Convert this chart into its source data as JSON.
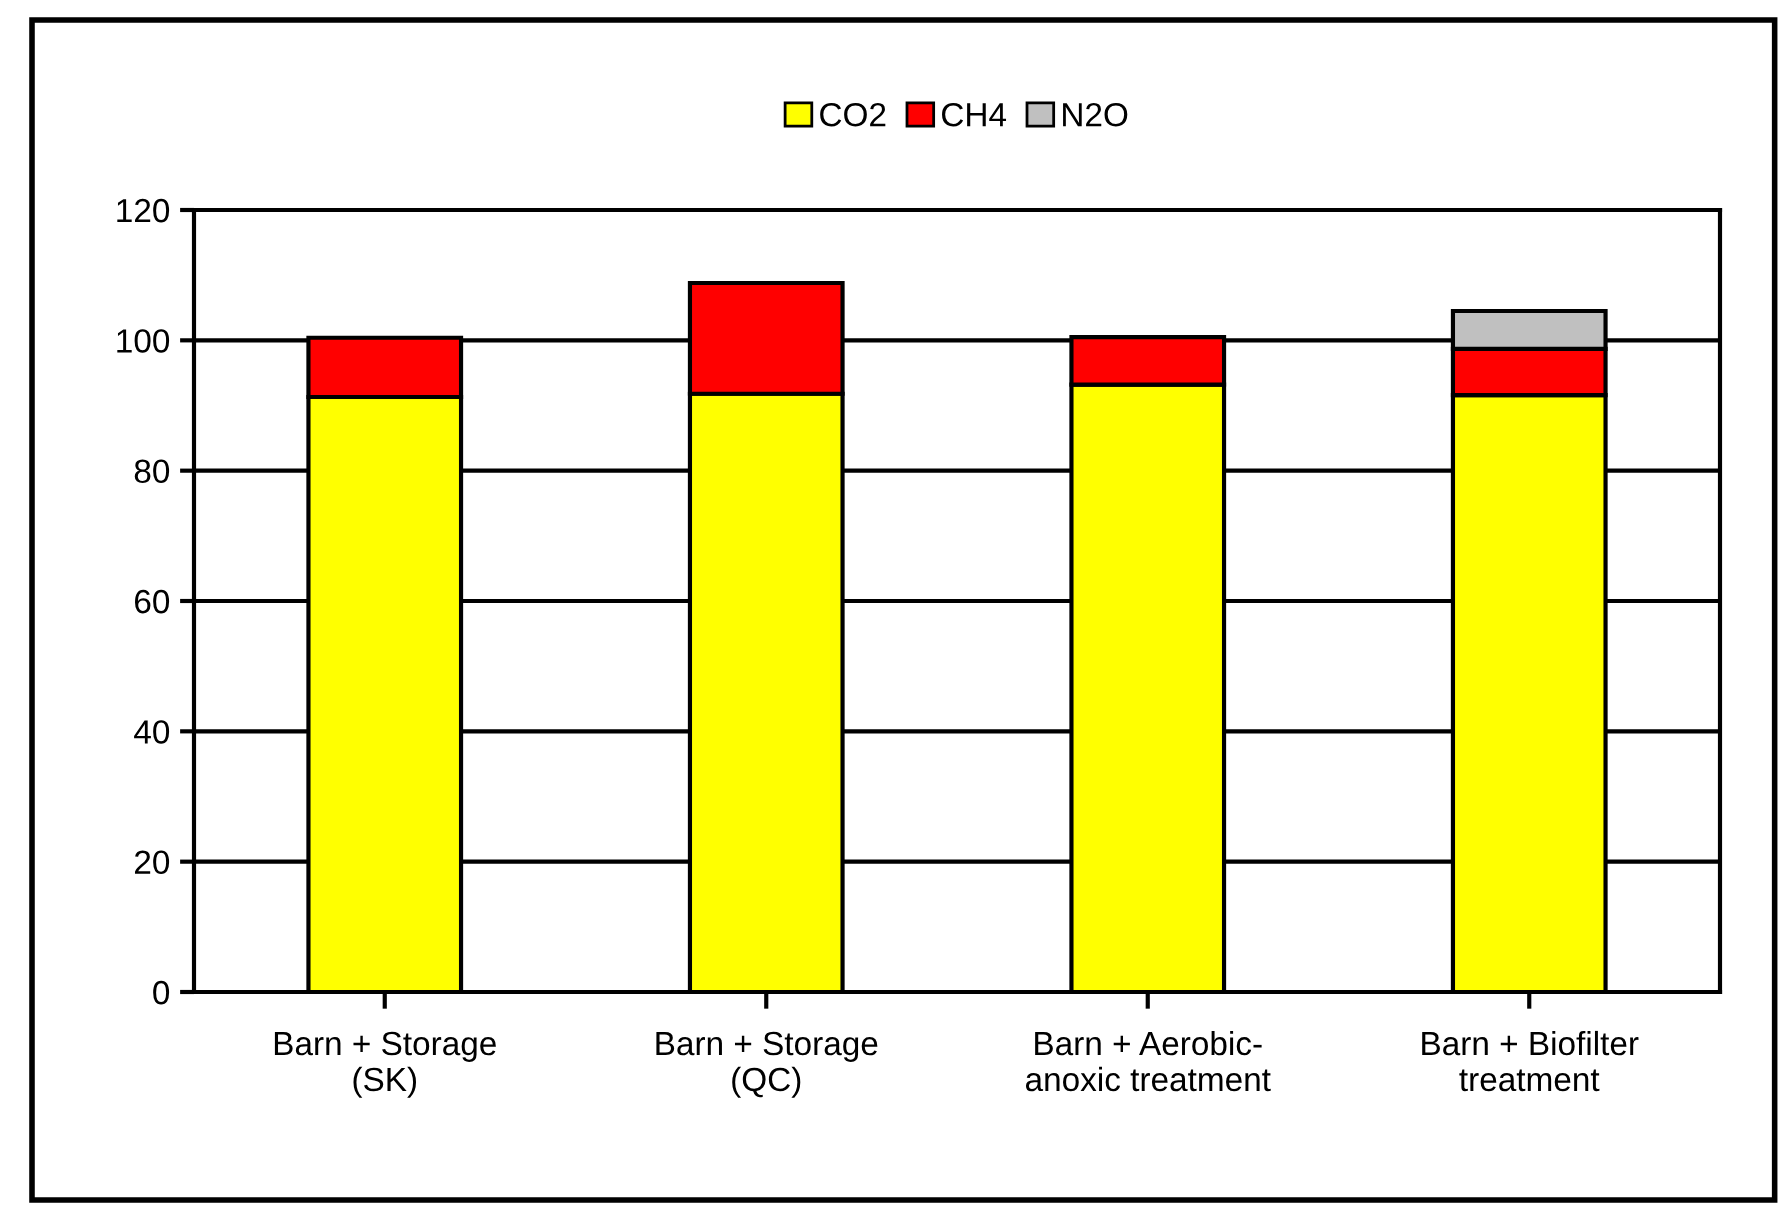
{
  "chart_data": {
    "type": "bar",
    "stacked": true,
    "categories": [
      "Barn + Storage\n(SK)",
      "Barn + Storage\n(QC)",
      "Barn + Aerobic-\nanoxic treatment",
      "Barn + Biofilter\ntreatment"
    ],
    "series": [
      {
        "name": "CO2",
        "color": "#ffff00",
        "values": [
          91.3,
          91.8,
          93.2,
          91.6
        ]
      },
      {
        "name": "CH4",
        "color": "#ff0000",
        "values": [
          9.1,
          17.0,
          7.3,
          7.1
        ]
      },
      {
        "name": "N2O",
        "color": "#c0c0c0",
        "values": [
          null,
          null,
          null,
          5.8
        ]
      }
    ],
    "ylim": [
      0,
      120
    ],
    "yticks": [
      0,
      20,
      40,
      60,
      80,
      100,
      120
    ],
    "grid": "y",
    "legend": "top"
  }
}
